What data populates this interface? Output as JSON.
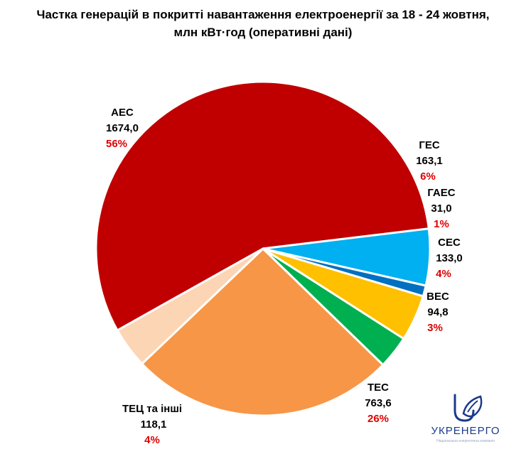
{
  "title_line1": "Частка генерацій в покритті навантаження  електроенергії за 18 - 24 жовтня,",
  "title_line2": "млн кВт·год (оперативні дані)",
  "chart_data": {
    "type": "pie",
    "start_angle_deg": -209.3,
    "slices": [
      {
        "name": "АЕС",
        "value": "1674,0",
        "num": 1674.0,
        "pct": "56%",
        "color": "#c00000"
      },
      {
        "name": "ГЕС",
        "value": "163,1",
        "num": 163.1,
        "pct": "6%",
        "color": "#00b0f0"
      },
      {
        "name": "ГАЕС",
        "value": "31,0",
        "num": 31.0,
        "pct": "1%",
        "color": "#0070c0"
      },
      {
        "name": "СЕС",
        "value": "133,0",
        "num": 133.0,
        "pct": "4%",
        "color": "#ffc000"
      },
      {
        "name": "ВЕС",
        "value": "94,8",
        "num": 94.8,
        "pct": "3%",
        "color": "#00b050"
      },
      {
        "name": "ТЕС",
        "value": "763,6",
        "num": 763.6,
        "pct": "26%",
        "color": "#f79646"
      },
      {
        "name": "ТЕЦ та інші",
        "value": "118,1",
        "num": 118.1,
        "pct": "4%",
        "color": "#fcd5b4"
      }
    ]
  },
  "logo": {
    "text": "УКРЕНЕРГО",
    "sub": "Національна енергетична компанія",
    "color": "#1b3a8a"
  }
}
